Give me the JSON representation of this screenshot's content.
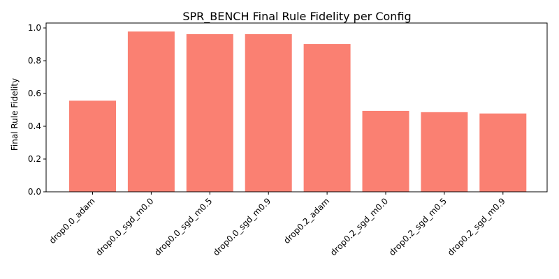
{
  "chart_data": {
    "type": "bar",
    "title": "SPR_BENCH Final Rule Fidelity per Config",
    "xlabel": "",
    "ylabel": "Final Rule Fidelity",
    "categories": [
      "drop0.0_adam",
      "drop0.0_sgd_m0.0",
      "drop0.0_sgd_m0.5",
      "drop0.0_sgd_m0.9",
      "drop0.2_adam",
      "drop0.2_sgd_m0.0",
      "drop0.2_sgd_m0.5",
      "drop0.2_sgd_m0.9"
    ],
    "values": [
      0.556,
      0.978,
      0.962,
      0.962,
      0.902,
      0.494,
      0.486,
      0.478
    ],
    "ylim": [
      0.0,
      1.03
    ],
    "yticks": [
      "0.0",
      "0.2",
      "0.4",
      "0.6",
      "0.8",
      "1.0"
    ],
    "bar_color": "#fa8072",
    "grid": false,
    "legend": "none"
  }
}
